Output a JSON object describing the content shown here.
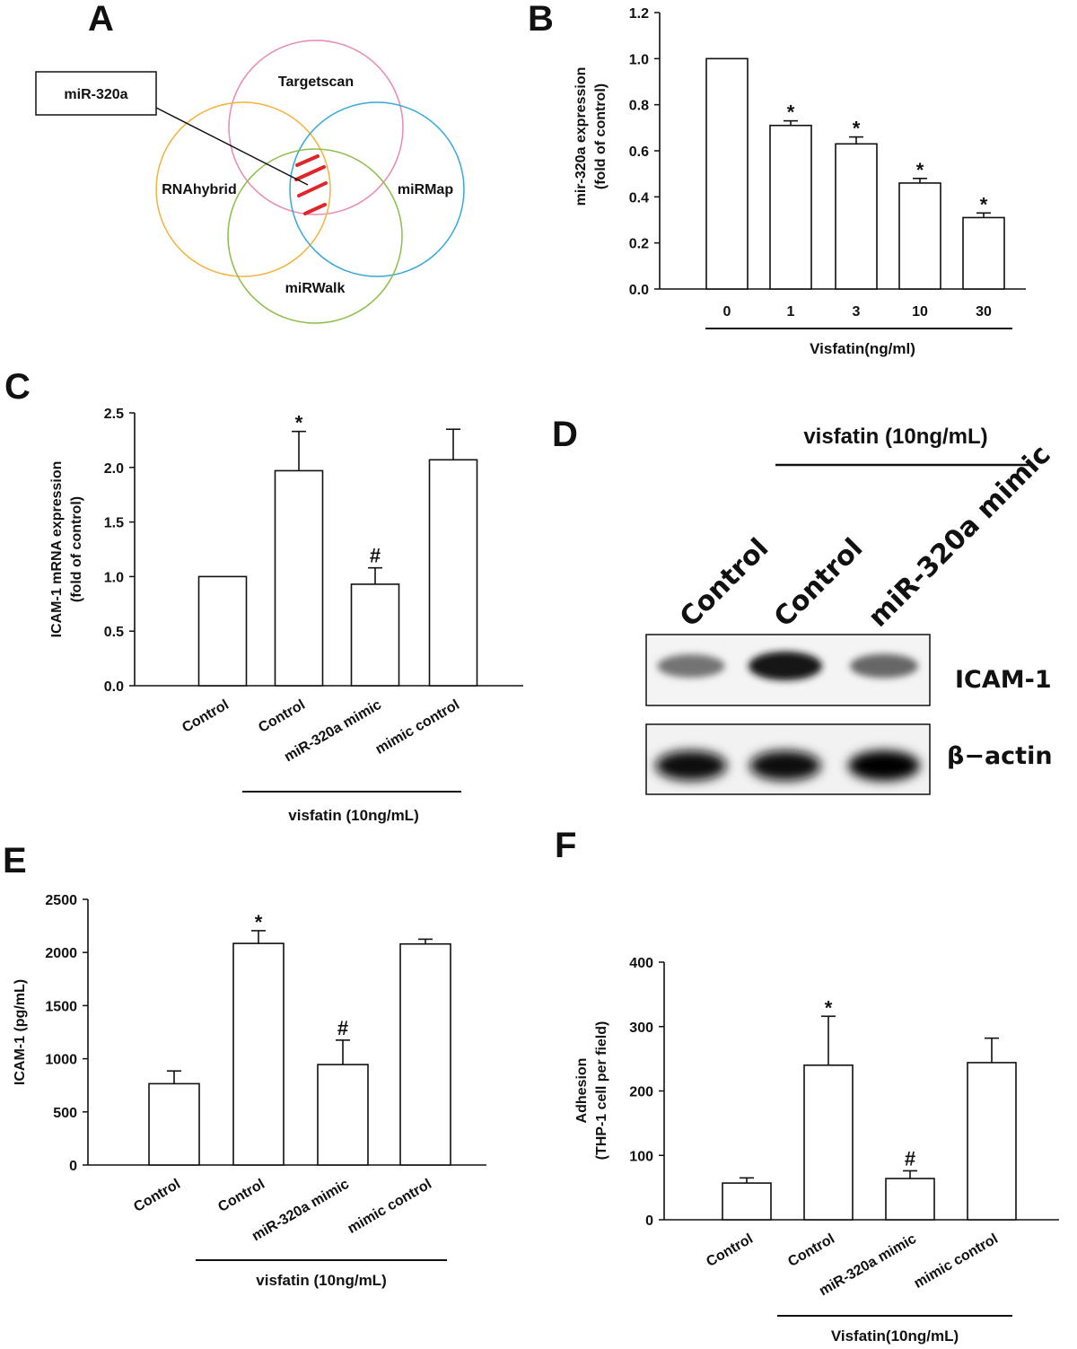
{
  "panels": {
    "A": {
      "letter": "A"
    },
    "B": {
      "letter": "B"
    },
    "C": {
      "letter": "C"
    },
    "D": {
      "letter": "D"
    },
    "E": {
      "letter": "E"
    },
    "F": {
      "letter": "F"
    }
  },
  "venn": {
    "callout": "miR-320a",
    "sets": [
      "Targetscan",
      "RNAhybrid",
      "miRMap",
      "miRWalk"
    ],
    "colors": {
      "Targetscan": "#e88ab4",
      "RNAhybrid": "#f2b43a",
      "miRMap": "#38a8d8",
      "miRWalk": "#8cbf4a",
      "hatch": "#e0262b"
    }
  },
  "blot": {
    "group_label": "visfatin (10ng/mL)",
    "lanes": [
      "Control",
      "Control",
      "miR-320a mimic"
    ],
    "bands": [
      "ICAM-1",
      "β−actin"
    ],
    "icam_intensity": [
      0.55,
      0.9,
      0.6
    ],
    "actin_intensity": [
      0.95,
      0.95,
      1.0
    ]
  },
  "chart_data": [
    {
      "id": "B",
      "type": "bar",
      "categories": [
        "0",
        "1",
        "3",
        "10",
        "30"
      ],
      "values": [
        1.0,
        0.71,
        0.63,
        0.46,
        0.31
      ],
      "errors": [
        0,
        0.02,
        0.03,
        0.02,
        0.02
      ],
      "annotations": [
        "",
        "*",
        "*",
        "*",
        "*"
      ],
      "ylabel": [
        "mir-320a expression",
        "(fold of control)"
      ],
      "xlabel": "Visfatin(ng/ml)",
      "ylim": [
        0,
        1.2
      ],
      "yticks": [
        "0.0",
        "0.2",
        "0.4",
        "0.6",
        "0.8",
        "1.0",
        "1.2"
      ]
    },
    {
      "id": "C",
      "type": "bar",
      "categories": [
        "Control",
        "Control",
        "miR-320a mimic",
        "mimic control"
      ],
      "values": [
        1.0,
        1.97,
        0.93,
        2.07
      ],
      "errors": [
        0,
        0.36,
        0.15,
        0.28
      ],
      "annotations": [
        "",
        "*",
        "#",
        ""
      ],
      "ylabel": [
        "ICAM-1 mRNA expression",
        "(fold of control)"
      ],
      "group_label": "visfatin (10ng/mL)",
      "ylim": [
        0,
        2.5
      ],
      "yticks": [
        "0.0",
        "0.5",
        "1.0",
        "1.5",
        "2.0",
        "2.5"
      ]
    },
    {
      "id": "E",
      "type": "bar",
      "categories": [
        "Control",
        "Control",
        "miR-320a mimic",
        "mimic control"
      ],
      "values": [
        765,
        2085,
        945,
        2080
      ],
      "errors": [
        120,
        120,
        230,
        45
      ],
      "annotations": [
        "",
        "*",
        "#",
        ""
      ],
      "ylabel": [
        "ICAM-1 (pg/mL)"
      ],
      "group_label": "visfatin (10ng/mL)",
      "ylim": [
        0,
        2500
      ],
      "yticks": [
        "0",
        "500",
        "1000",
        "1500",
        "2000",
        "2500"
      ]
    },
    {
      "id": "F",
      "type": "bar",
      "categories": [
        "Control",
        "Control",
        "miR-320a mimic",
        "mimic control"
      ],
      "values": [
        57,
        240,
        64,
        244
      ],
      "errors": [
        8,
        76,
        12,
        38
      ],
      "annotations": [
        "",
        "*",
        "#",
        ""
      ],
      "ylabel": [
        "Adhesion",
        "(THP-1 cell per field)"
      ],
      "group_label": "Visfatin(10ng/mL)",
      "ylim": [
        0,
        400
      ],
      "yticks": [
        "0",
        "100",
        "200",
        "300",
        "400"
      ]
    }
  ]
}
